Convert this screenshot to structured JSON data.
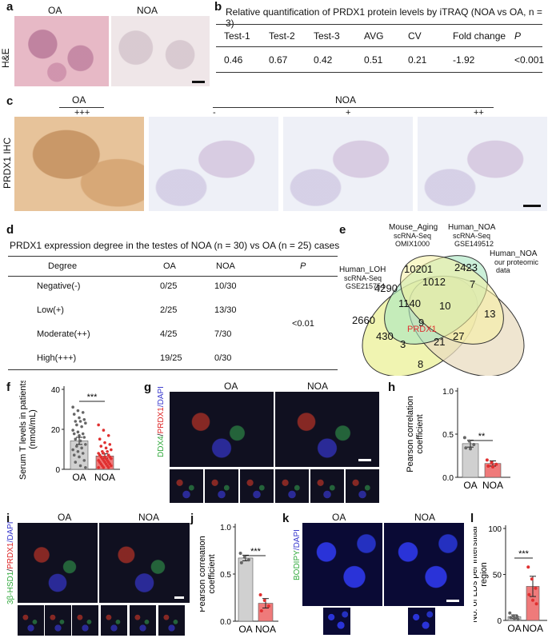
{
  "panels": [
    "a",
    "b",
    "c",
    "d",
    "e",
    "f",
    "g",
    "h",
    "i",
    "j",
    "k",
    "l"
  ],
  "a": {
    "he_label": "H&E",
    "oa": "OA",
    "noa": "NOA"
  },
  "b": {
    "title": "Relative quantification of PRDX1 protein levels by iTRAQ (NOA vs OA, n = 3)",
    "headers": [
      "Test-1",
      "Test-2",
      "Test-3",
      "AVG",
      "CV",
      "Fold change",
      "P"
    ],
    "values": [
      "0.46",
      "0.67",
      "0.42",
      "0.51",
      "0.21",
      "-1.92",
      "<0.001"
    ]
  },
  "c": {
    "ylabel": "PRDX1 IHC",
    "oa": "OA",
    "noa": "NOA",
    "grades": [
      "+++",
      "-",
      "+",
      "++"
    ]
  },
  "d": {
    "title": "PRDX1 expression degree in the testes of NOA (n = 30) vs OA (n = 25) cases",
    "headers": [
      "Degree",
      "OA",
      "NOA",
      "P"
    ],
    "rows": [
      [
        "Negative(-)",
        "0/25",
        "10/30"
      ],
      [
        "Low(+)",
        "2/25",
        "13/30"
      ],
      [
        "Moderate(++)",
        "4/25",
        "7/30"
      ],
      [
        "High(+++)",
        "19/25",
        "0/30"
      ]
    ],
    "p_value": "<0.01"
  },
  "e": {
    "sets": [
      {
        "name": "Human_LOH",
        "sub": "scRNA-Seq",
        "id": "GSE215754",
        "color": "#eef3a8"
      },
      {
        "name": "Mouse_Aging",
        "sub": "scRNA-Seq",
        "id": "OMIX1000",
        "color": "#a8e6c0"
      },
      {
        "name": "Human_NOA",
        "sub": "scRNA-Seq",
        "id": "GSE149512",
        "color": "#f6f0a0"
      },
      {
        "name": "Human_NOA",
        "sub": "our proteomic",
        "id": "data",
        "color": "#e9dcc0"
      }
    ],
    "numbers": [
      "10201",
      "2423",
      "4290",
      "1012",
      "7",
      "2660",
      "1140",
      "10",
      "13",
      "9",
      "430",
      "27",
      "3",
      "21",
      "8"
    ],
    "highlight": "PRDX1",
    "highlight_color": "#e03030"
  },
  "f": {
    "ylabel": "Serum T levels in patients (nmol/mL)",
    "ticks": [
      "0",
      "20",
      "40"
    ],
    "sig": "***",
    "chart_data": {
      "type": "bar",
      "categories": [
        "OA",
        "NOA"
      ],
      "values": [
        16.0,
        7.5
      ],
      "errors": [
        2.0,
        1.2
      ],
      "ylim": [
        0,
        45
      ],
      "colors": [
        "#d0d0d0",
        "#ef7a7a"
      ],
      "points": [
        [
          35,
          33,
          32,
          31,
          29,
          28,
          27,
          27,
          26,
          25,
          24,
          22,
          21,
          20,
          20,
          19,
          18,
          17,
          16,
          14,
          13,
          12,
          11,
          10,
          9,
          8,
          7,
          5,
          4,
          2,
          1
        ],
        [
          25,
          22,
          19,
          17,
          15,
          14,
          13,
          12,
          11,
          10,
          10,
          9,
          9,
          8,
          8,
          7,
          7,
          7,
          6,
          6,
          6,
          5,
          5,
          5,
          4,
          4,
          4,
          3,
          3,
          3,
          2,
          2,
          2,
          1,
          1,
          1
        ]
      ]
    }
  },
  "g": {
    "ylabel": "DDX4/PRDX1/DAPI",
    "y_ddx4": "DDX4",
    "y_prdx1": "PRDX1",
    "y_dapi": "/DAPI",
    "oa": "OA",
    "noa": "NOA"
  },
  "h": {
    "ylabel": "Pearson correlation coefficient",
    "ticks": [
      "0.0",
      "0.5",
      "1.0"
    ],
    "sig": "**",
    "chart_data": {
      "type": "bar",
      "categories": [
        "OA",
        "NOA"
      ],
      "values": [
        0.39,
        0.16
      ],
      "errors": [
        0.04,
        0.03
      ],
      "ylim": [
        0,
        1.0
      ],
      "colors": [
        "#d0d0d0",
        "#ef7a7a"
      ],
      "points": [
        [
          0.46,
          0.42,
          0.38,
          0.34,
          0.33
        ],
        [
          0.2,
          0.17,
          0.15,
          0.13,
          0.12
        ]
      ]
    }
  },
  "i": {
    "y_hsd": "3β-HSD1",
    "y_prdx1": "PRDX1",
    "y_dapi": "/DAPI",
    "oa": "OA",
    "noa": "NOA"
  },
  "j": {
    "ylabel": "Pearson correlation coefficient",
    "ticks": [
      "0.0",
      "0.5",
      "1.0"
    ],
    "sig": "***",
    "chart_data": {
      "type": "bar",
      "categories": [
        "OA",
        "NOA"
      ],
      "values": [
        0.67,
        0.19
      ],
      "errors": [
        0.03,
        0.05
      ],
      "ylim": [
        0,
        1.0
      ],
      "colors": [
        "#d0d0d0",
        "#ef7a7a"
      ],
      "points": [
        [
          0.72,
          0.68,
          0.65,
          0.62
        ],
        [
          0.28,
          0.22,
          0.16,
          0.11
        ]
      ]
    }
  },
  "k": {
    "y_bodipy": "BODIPY",
    "y_dapi": "/DAPI",
    "oa": "OA",
    "noa": "NOA"
  },
  "l": {
    "ylabel": "No. of LDs per interstitial region",
    "ticks": [
      "0",
      "50",
      "100"
    ],
    "sig": "***",
    "chart_data": {
      "type": "bar",
      "categories": [
        "OA",
        "NOA"
      ],
      "values": [
        4,
        37
      ],
      "errors": [
        2,
        11
      ],
      "ylim": [
        0,
        100
      ],
      "colors": [
        "#d0d0d0",
        "#ef7a7a"
      ],
      "points": [
        [
          8,
          5,
          4,
          3,
          2,
          1
        ],
        [
          58,
          45,
          35,
          28,
          22,
          18
        ]
      ]
    }
  }
}
